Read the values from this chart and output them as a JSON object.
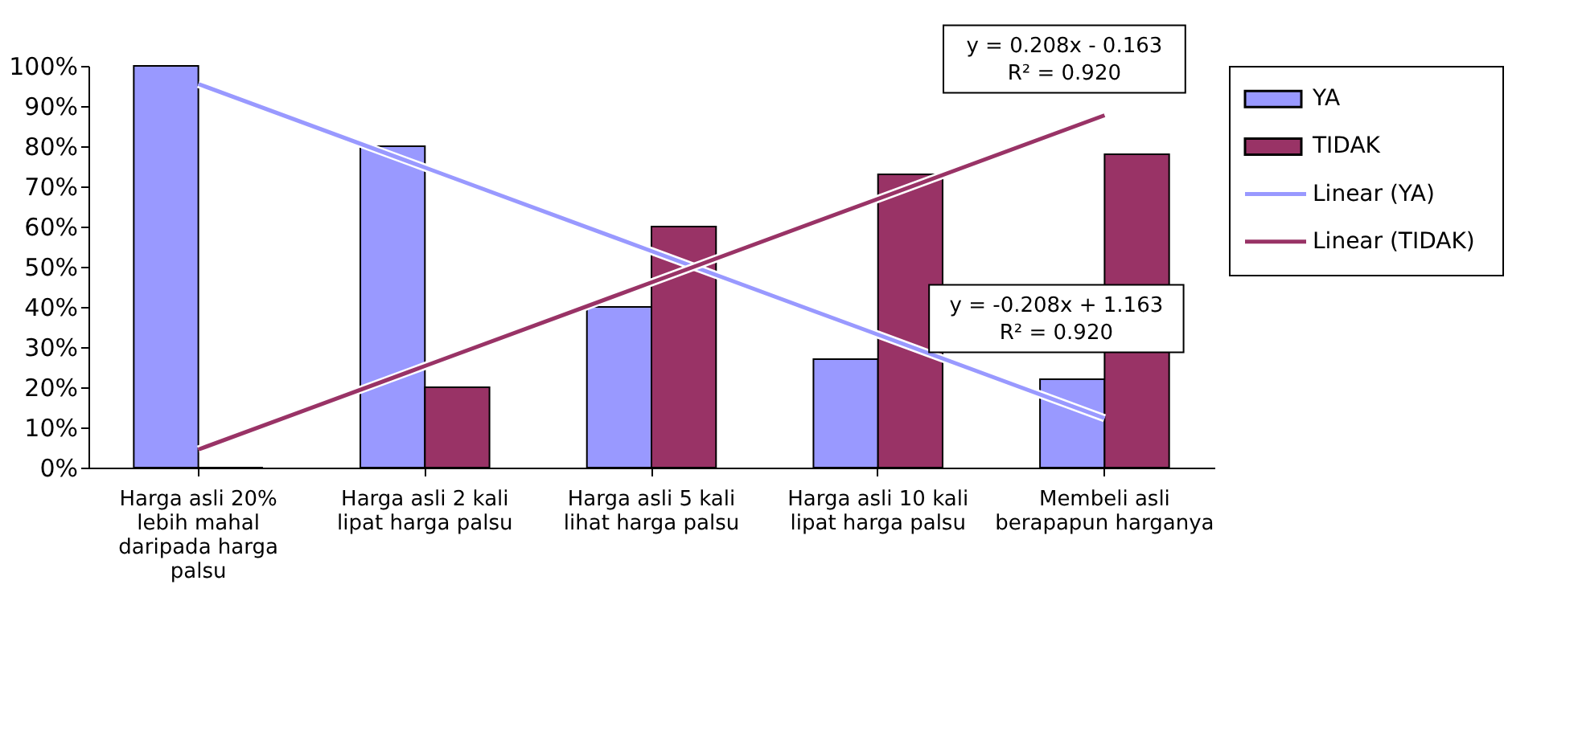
{
  "chart_data": {
    "type": "bar",
    "categories": [
      "Harga asli 20% lebih mahal daripada harga palsu",
      "Harga asli 2 kali lipat harga palsu",
      "Harga asli 5 kali lihat harga palsu",
      "Harga asli 10 kali lipat harga palsu",
      "Membeli asli berapapun harganya"
    ],
    "series": [
      {
        "name": "YA",
        "color": "#9999ff",
        "values": [
          100,
          80,
          40,
          27,
          22
        ]
      },
      {
        "name": "TIDAK",
        "color": "#993366",
        "values": [
          0,
          20,
          60,
          73,
          78
        ]
      },
      {
        "name": "Linear (YA)",
        "type": "line",
        "color": "#9999ff",
        "values": [
          95.5,
          74.7,
          53.9,
          33.1,
          12.3
        ]
      },
      {
        "name": "Linear (TIDAK)",
        "type": "line",
        "color": "#993366",
        "values": [
          4.5,
          25.3,
          46.1,
          66.9,
          87.7
        ]
      }
    ],
    "ylim": [
      0,
      100
    ],
    "yticks": [
      {
        "value": 0,
        "label": "0%"
      },
      {
        "value": 10,
        "label": "10%"
      },
      {
        "value": 20,
        "label": "20%"
      },
      {
        "value": 30,
        "label": "30%"
      },
      {
        "value": 40,
        "label": "40%"
      },
      {
        "value": 50,
        "label": "50%"
      },
      {
        "value": 60,
        "label": "60%"
      },
      {
        "value": 70,
        "label": "70%"
      },
      {
        "value": 80,
        "label": "80%"
      },
      {
        "value": 90,
        "label": "90%"
      },
      {
        "value": 100,
        "label": "100%"
      }
    ],
    "annotations": [
      "y = 0.208x - 0.163\nR² = 0.920",
      "y = -0.208x + 1.163\nR² = 0.920"
    ],
    "grid": false,
    "legend": "right"
  }
}
